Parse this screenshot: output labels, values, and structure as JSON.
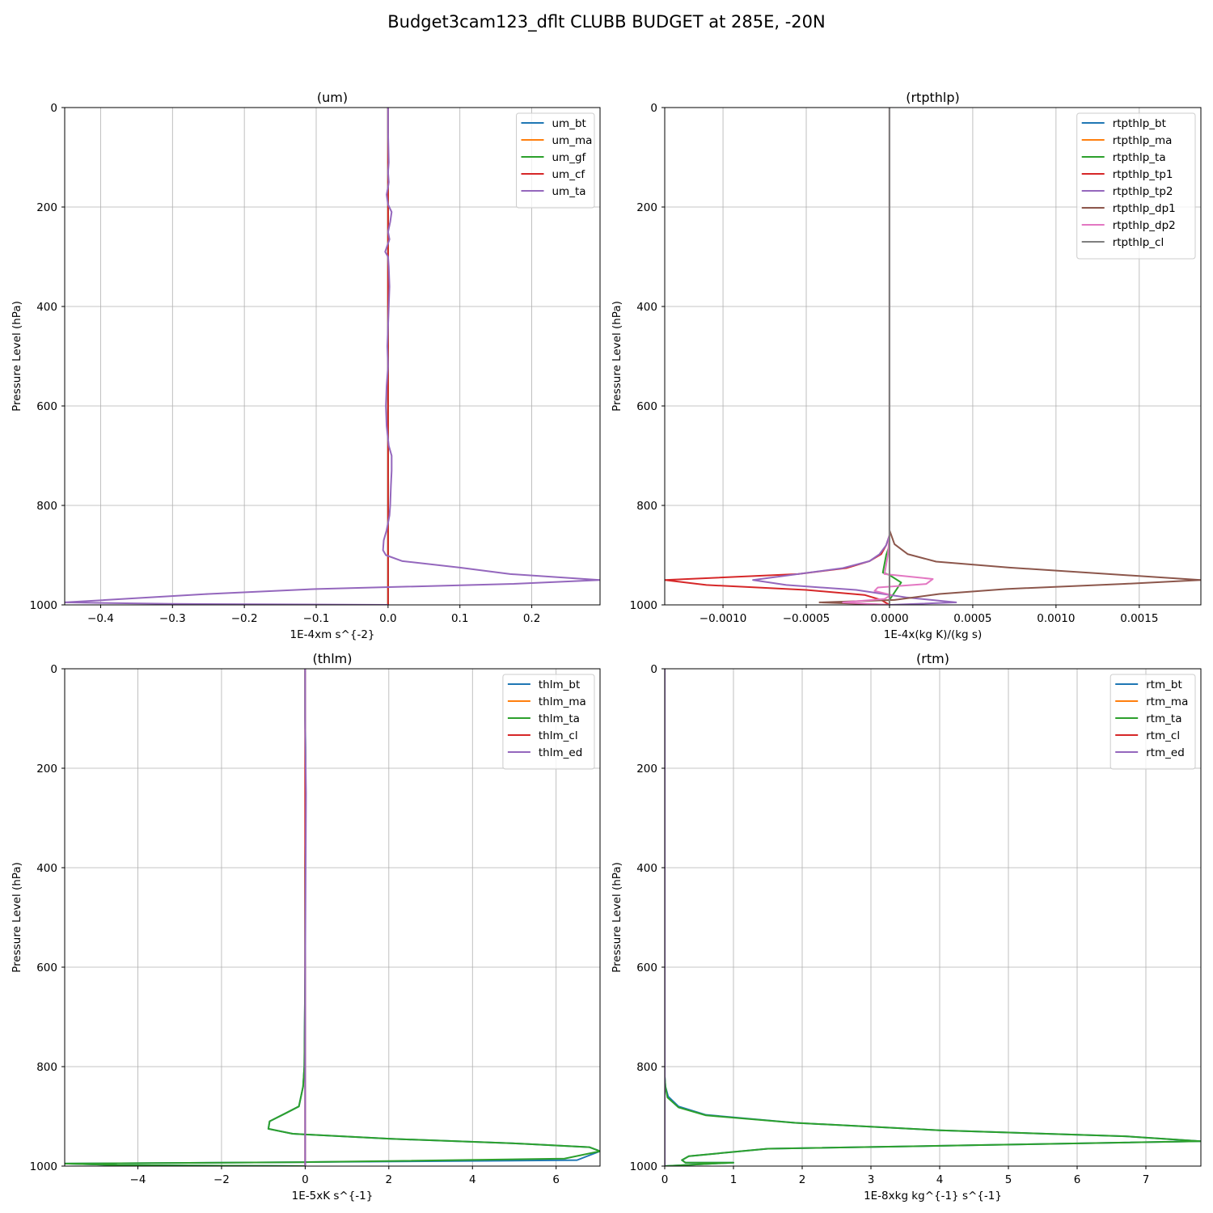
{
  "figure": {
    "suptitle": "Budget3cam123_dflt CLUBB BUDGET at 285E, -20N"
  },
  "chart_data": [
    {
      "type": "line",
      "title": "(um)",
      "xlabel": "1E-4xm s^{-2}",
      "ylabel": "Pressure Level (hPa)",
      "xlim": [
        -0.45,
        0.295
      ],
      "ylim": [
        1000,
        0
      ],
      "y_inverted": true,
      "xticks": [
        -0.4,
        -0.3,
        -0.2,
        -0.1,
        0.0,
        0.1,
        0.2
      ],
      "xtick_labels": [
        "−0.4",
        "−0.3",
        "−0.2",
        "−0.1",
        "0.0",
        "0.1",
        "0.2"
      ],
      "yticks": [
        0,
        200,
        400,
        600,
        800,
        1000
      ],
      "grid": true,
      "legend": "upper right",
      "series": [
        {
          "name": "um_bt",
          "color": "#1f77b4",
          "x": [
            0,
            0
          ],
          "y": [
            0,
            1000
          ]
        },
        {
          "name": "um_ma",
          "color": "#ff7f0e",
          "x": [
            0,
            0
          ],
          "y": [
            0,
            1000
          ]
        },
        {
          "name": "um_gf",
          "color": "#2ca02c",
          "x": [
            0,
            0
          ],
          "y": [
            0,
            1000
          ]
        },
        {
          "name": "um_cf",
          "color": "#d62728",
          "x": [
            0,
            0
          ],
          "y": [
            0,
            1000
          ]
        },
        {
          "name": "um_ta",
          "color": "#9467bd",
          "x": [
            0.0,
            0.0,
            0.001,
            0.0,
            0.001,
            0.0,
            -0.002,
            0.0,
            0.005,
            0.003,
            0.0,
            0.002,
            -0.004,
            0.0,
            0.001,
            0.002,
            0.001,
            0.0,
            -0.001,
            0.0,
            -0.002,
            -0.003,
            -0.002,
            0.001,
            0.005,
            0.005,
            0.004,
            0.003,
            0.002,
            -0.002,
            -0.006,
            -0.007,
            -0.003,
            0.02,
            0.1,
            0.17,
            0.295,
            0.17,
            -0.1,
            -0.25,
            -0.45,
            -0.3,
            0.0
          ],
          "y": [
            0,
            50,
            110,
            130,
            150,
            160,
            175,
            195,
            210,
            230,
            250,
            265,
            290,
            300,
            320,
            360,
            400,
            440,
            480,
            520,
            560,
            600,
            640,
            680,
            700,
            730,
            760,
            800,
            820,
            850,
            870,
            890,
            900,
            912,
            925,
            938,
            950,
            958,
            968,
            978,
            995,
            998,
            1000
          ]
        }
      ]
    },
    {
      "type": "line",
      "title": "(rtpthlp)",
      "xlabel": "1E-4x(kg K)/(kg s)",
      "ylabel": "Pressure Level (hPa)",
      "xlim": [
        -0.00135,
        0.00187
      ],
      "ylim": [
        1000,
        0
      ],
      "y_inverted": true,
      "xticks": [
        -0.001,
        -0.0005,
        0.0,
        0.0005,
        0.001,
        0.0015
      ],
      "xtick_labels": [
        "−0.0010",
        "−0.0005",
        "0.0000",
        "0.0005",
        "0.0010",
        "0.0015"
      ],
      "yticks": [
        0,
        200,
        400,
        600,
        800,
        1000
      ],
      "grid": true,
      "legend": "upper right",
      "series": [
        {
          "name": "rtpthlp_bt",
          "color": "#1f77b4",
          "x": [
            0,
            0
          ],
          "y": [
            0,
            1000
          ]
        },
        {
          "name": "rtpthlp_ma",
          "color": "#ff7f0e",
          "x": [
            0,
            0
          ],
          "y": [
            0,
            1000
          ]
        },
        {
          "name": "rtpthlp_ta",
          "color": "#2ca02c",
          "x": [
            0,
            0,
            0.0,
            -2e-05,
            -4e-05,
            0.0,
            7e-05,
            3e-05,
            0.0,
            0.0
          ],
          "y": [
            0,
            860,
            880,
            900,
            935,
            940,
            955,
            975,
            990,
            1000
          ]
        },
        {
          "name": "rtpthlp_tp1",
          "color": "#d62728",
          "x": [
            0,
            0,
            -2e-05,
            -5e-05,
            -0.00012,
            -0.00026,
            -0.00055,
            -0.00135,
            -0.0011,
            -0.0005,
            -0.00015,
            -5e-05,
            0.0
          ],
          "y": [
            0,
            860,
            880,
            898,
            912,
            926,
            938,
            950,
            960,
            970,
            980,
            990,
            1000
          ]
        },
        {
          "name": "rtpthlp_tp2",
          "color": "#9467bd",
          "x": [
            0,
            0,
            -2e-05,
            -6e-05,
            -0.00012,
            -0.00028,
            -0.00082,
            -0.00062,
            -0.0002,
            0.0001,
            0.0004,
            0.0
          ],
          "y": [
            0,
            860,
            880,
            898,
            912,
            926,
            950,
            960,
            970,
            985,
            995,
            1000
          ]
        },
        {
          "name": "rtpthlp_dp1",
          "color": "#8c564b",
          "x": [
            0,
            0,
            3e-05,
            0.00011,
            0.00028,
            0.00072,
            0.00187,
            0.0014,
            0.0007,
            0.0003,
            3e-05,
            -0.00042,
            0.0
          ],
          "y": [
            0,
            850,
            878,
            898,
            913,
            925,
            950,
            958,
            968,
            978,
            990,
            995,
            1000
          ]
        },
        {
          "name": "rtpthlp_dp2",
          "color": "#e377c2",
          "x": [
            0,
            0,
            -1e-05,
            -3e-05,
            0.00026,
            0.00022,
            -7e-05,
            -9e-05,
            1e-05,
            -3e-05,
            -0.00028,
            0.0
          ],
          "y": [
            0,
            860,
            900,
            938,
            948,
            958,
            965,
            972,
            980,
            988,
            995,
            1000
          ]
        },
        {
          "name": "rtpthlp_cl",
          "color": "#7f7f7f",
          "x": [
            0,
            0
          ],
          "y": [
            0,
            1000
          ]
        }
      ]
    },
    {
      "type": "line",
      "title": "(thlm)",
      "xlabel": "1E-5xK s^{-1}",
      "ylabel": "Pressure Level (hPa)",
      "xlim": [
        -5.75,
        7.05
      ],
      "ylim": [
        1000,
        0
      ],
      "y_inverted": true,
      "xticks": [
        -4,
        -2,
        0,
        2,
        4,
        6
      ],
      "xtick_labels": [
        "−4",
        "−2",
        "0",
        "2",
        "4",
        "6"
      ],
      "yticks": [
        0,
        200,
        400,
        600,
        800,
        1000
      ],
      "grid": true,
      "legend": "upper right",
      "series": [
        {
          "name": "thlm_bt",
          "color": "#1f77b4",
          "x": [
            0.0,
            0.0,
            0.01,
            0.0,
            0.0,
            -0.02,
            -0.05,
            -0.15,
            -0.45,
            -0.85,
            -0.88,
            -0.3,
            2.0,
            5.2,
            6.8,
            7.05,
            6.5,
            0.0,
            -5.75,
            -4.5,
            0.0
          ],
          "y": [
            0,
            100,
            200,
            400,
            600,
            800,
            840,
            880,
            893,
            910,
            925,
            935,
            945,
            955,
            962,
            970,
            988,
            992,
            995,
            998,
            1000
          ]
        },
        {
          "name": "thlm_ma",
          "color": "#ff7f0e",
          "x": [
            0,
            0
          ],
          "y": [
            0,
            1000
          ]
        },
        {
          "name": "thlm_ta",
          "color": "#2ca02c",
          "x": [
            0.0,
            0.0,
            0.01,
            0.0,
            0.0,
            -0.02,
            -0.05,
            -0.15,
            -0.45,
            -0.85,
            -0.88,
            -0.3,
            2.0,
            5.2,
            6.8,
            7.05,
            6.2,
            0.0,
            -5.75,
            -4.5,
            0.0
          ],
          "y": [
            0,
            100,
            200,
            400,
            600,
            800,
            840,
            880,
            893,
            910,
            925,
            935,
            945,
            955,
            962,
            970,
            985,
            992,
            995,
            998,
            1000
          ]
        },
        {
          "name": "thlm_cl",
          "color": "#d62728",
          "x": [
            0,
            0
          ],
          "y": [
            0,
            1000
          ]
        },
        {
          "name": "thlm_ed",
          "color": "#9467bd",
          "x": [
            0.0,
            0.0,
            0.02,
            0.0,
            0.0
          ],
          "y": [
            0,
            120,
            250,
            600,
            1000
          ]
        }
      ]
    },
    {
      "type": "line",
      "title": "(rtm)",
      "xlabel": "1E-8xkg kg^{-1} s^{-1}",
      "ylabel": "Pressure Level (hPa)",
      "xlim": [
        0,
        7.8
      ],
      "ylim": [
        1000,
        0
      ],
      "y_inverted": true,
      "xticks": [
        0,
        1,
        2,
        3,
        4,
        5,
        6,
        7
      ],
      "xtick_labels": [
        "0",
        "1",
        "2",
        "3",
        "4",
        "5",
        "6",
        "7"
      ],
      "yticks": [
        0,
        200,
        400,
        600,
        800,
        1000
      ],
      "grid": true,
      "legend": "upper right",
      "series": [
        {
          "name": "rtm_bt",
          "color": "#1f77b4",
          "x": [
            0.0,
            0.0,
            0.01,
            0.05,
            0.2,
            0.6,
            1.9,
            4.0,
            6.7,
            7.8,
            4.5,
            1.5,
            0.35,
            0.25,
            0.3,
            1.0,
            0.0
          ],
          "y": [
            0,
            820,
            840,
            860,
            880,
            897,
            913,
            928,
            940,
            950,
            958,
            965,
            980,
            988,
            993,
            993,
            1000
          ]
        },
        {
          "name": "rtm_ma",
          "color": "#ff7f0e",
          "x": [
            0,
            0
          ],
          "y": [
            0,
            1000
          ]
        },
        {
          "name": "rtm_ta",
          "color": "#2ca02c",
          "x": [
            0.0,
            0.0,
            0.01,
            0.04,
            0.2,
            0.6,
            1.9,
            4.0,
            6.7,
            7.8,
            4.5,
            1.5,
            0.35,
            0.25,
            0.3,
            1.0,
            0.0
          ],
          "y": [
            0,
            820,
            840,
            862,
            882,
            898,
            913,
            928,
            940,
            950,
            958,
            965,
            980,
            988,
            993,
            993,
            1000
          ]
        },
        {
          "name": "rtm_cl",
          "color": "#d62728",
          "x": [
            0,
            0
          ],
          "y": [
            0,
            1000
          ]
        },
        {
          "name": "rtm_ed",
          "color": "#9467bd",
          "x": [
            0,
            0
          ],
          "y": [
            0,
            1000
          ]
        }
      ]
    }
  ]
}
